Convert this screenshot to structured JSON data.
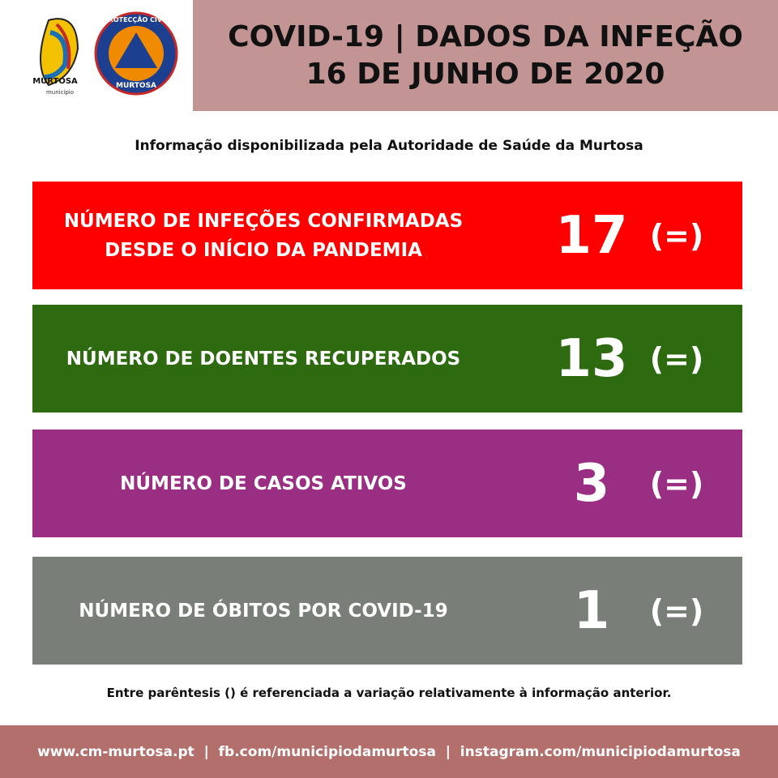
{
  "header": {
    "logo_left": {
      "name": "MURTOSA",
      "subtitle": "município"
    },
    "logo_right": {
      "top": "PROTECÇÃO CIVIL",
      "bottom": "MURTOSA"
    },
    "title_lines": [
      "COVID-19 | DADOS DA INFEÇÃO",
      "16 DE JUNHO DE 2020"
    ]
  },
  "subtitle": "Informação disponibilizada pela Autoridade de Saúde da Murtosa",
  "cards": [
    {
      "label_lines": [
        "NÚMERO DE INFEÇÕES CONFIRMADAS",
        "DESDE O INÍCIO DA PANDEMIA"
      ],
      "value": 17,
      "change": "(=)",
      "color": "#ff0000"
    },
    {
      "label_lines": [
        "NÚMERO DE DOENTES RECUPERADOS"
      ],
      "value": 13,
      "change": "(=)",
      "color": "#2d6a10"
    },
    {
      "label_lines": [
        "NÚMERO DE CASOS ATIVOS"
      ],
      "value": 3,
      "change": "(=)",
      "color": "#992e82"
    },
    {
      "label_lines": [
        "NÚMERO DE ÓBITOS POR COVID-19"
      ],
      "value": 1,
      "change": "(=)",
      "color": "#797e78"
    }
  ],
  "note": "Entre parêntesis () é referenciada a variação relativamente à informação anterior.",
  "footer": "www.cm-murtosa.pt  |  fb.com/municipiodamurtosa  |  instagram.com/municipiodamurtosa"
}
